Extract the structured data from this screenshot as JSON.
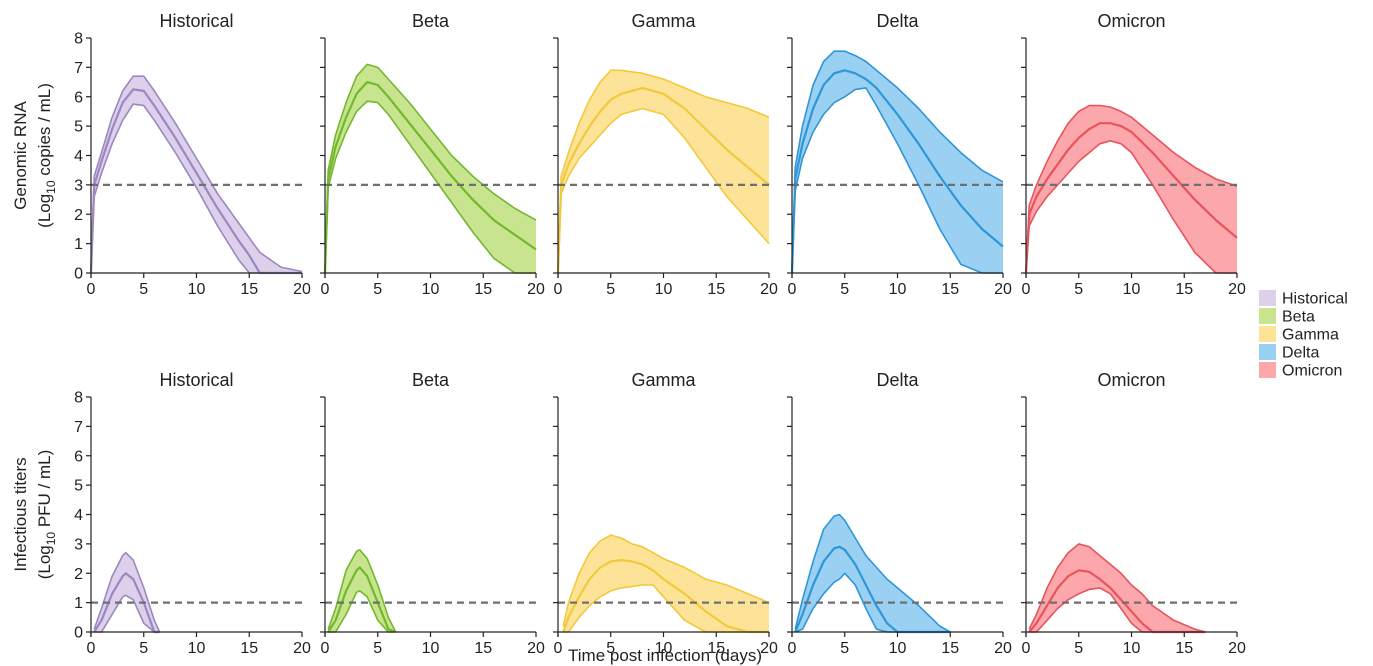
{
  "figure": {
    "xlabel": "Time post infection (days)",
    "rows": [
      {
        "ylabel_main": "Genomic RNA",
        "ylabel_prefix": "(Log",
        "ylabel_sub": "10",
        "ylabel_suffix": " copies / mL)"
      },
      {
        "ylabel_main": "Infectious titers",
        "ylabel_prefix": "(Log",
        "ylabel_sub": "10",
        "ylabel_suffix": " PFU / mL)"
      }
    ],
    "legend": [
      {
        "label": "Historical",
        "color": "#dcd0ea"
      },
      {
        "label": "Beta",
        "color": "#c9e48e"
      },
      {
        "label": "Gamma",
        "color": "#fce398"
      },
      {
        "label": "Delta",
        "color": "#9ad0f2"
      },
      {
        "label": "Omicron",
        "color": "#fba7ab"
      }
    ]
  },
  "chart_data": [
    {
      "type": "area",
      "row": "Genomic RNA",
      "xlabel": "",
      "ylabel": "Genomic RNA (Log10 copies / mL)",
      "xlim": [
        0,
        20
      ],
      "ylim": [
        0,
        8
      ],
      "x_ticks": [
        0,
        5,
        10,
        15,
        20
      ],
      "y_ticks": [
        0,
        1,
        2,
        3,
        4,
        5,
        6,
        7,
        8
      ],
      "threshold": 3,
      "panels": [
        {
          "title": "Historical",
          "line": "#9b87c2",
          "fill": "#dcd0ea",
          "x": [
            0,
            0.3,
            1,
            2,
            3,
            4,
            5,
            6,
            8,
            10,
            12,
            14,
            15,
            16,
            18,
            20
          ],
          "median": [
            0,
            3.0,
            3.8,
            4.9,
            5.8,
            6.25,
            6.2,
            5.7,
            4.6,
            3.4,
            2.2,
            1.1,
            0.6,
            0,
            0,
            0
          ],
          "upper": [
            0,
            3.3,
            4.1,
            5.3,
            6.2,
            6.7,
            6.7,
            6.2,
            5.1,
            3.9,
            2.7,
            1.7,
            1.2,
            0.7,
            0.2,
            0.05
          ],
          "lower": [
            0,
            2.6,
            3.4,
            4.4,
            5.2,
            5.75,
            5.7,
            5.2,
            4.1,
            2.9,
            1.6,
            0.45,
            0,
            0,
            0,
            0
          ]
        },
        {
          "title": "Beta",
          "line": "#72b82e",
          "fill": "#c9e48e",
          "x": [
            0,
            0.3,
            1,
            2,
            3,
            4,
            5,
            6,
            8,
            10,
            12,
            14,
            16,
            18,
            20
          ],
          "median": [
            0,
            3.2,
            4.3,
            5.3,
            6.1,
            6.5,
            6.4,
            6.0,
            5.1,
            4.2,
            3.3,
            2.5,
            1.8,
            1.3,
            0.8
          ],
          "upper": [
            0,
            3.5,
            4.7,
            5.8,
            6.7,
            7.1,
            7.0,
            6.6,
            5.8,
            4.9,
            4.0,
            3.3,
            2.7,
            2.2,
            1.8
          ],
          "lower": [
            0,
            2.9,
            3.9,
            4.8,
            5.5,
            5.85,
            5.8,
            5.4,
            4.4,
            3.4,
            2.4,
            1.4,
            0.5,
            0,
            0
          ]
        },
        {
          "title": "Gamma",
          "line": "#f2c93a",
          "fill": "#fce398",
          "x": [
            0,
            0.3,
            1,
            2,
            3,
            4,
            5,
            6,
            8,
            10,
            12,
            14,
            16,
            18,
            20
          ],
          "median": [
            0,
            3.0,
            3.7,
            4.4,
            5.0,
            5.5,
            5.9,
            6.1,
            6.3,
            6.1,
            5.6,
            4.9,
            4.2,
            3.6,
            3.0
          ],
          "upper": [
            0,
            3.3,
            4.1,
            5.1,
            5.9,
            6.5,
            6.9,
            6.9,
            6.8,
            6.6,
            6.3,
            6.0,
            5.8,
            5.6,
            5.3
          ],
          "lower": [
            0,
            2.7,
            3.3,
            3.9,
            4.3,
            4.7,
            5.1,
            5.4,
            5.6,
            5.4,
            4.6,
            3.6,
            2.6,
            1.8,
            1.0
          ]
        },
        {
          "title": "Delta",
          "line": "#2f96d8",
          "fill": "#9ad0f2",
          "x": [
            0,
            0.3,
            1,
            2,
            3,
            4,
            5,
            6,
            7,
            8,
            10,
            12,
            14,
            16,
            18,
            20
          ],
          "median": [
            0,
            3.2,
            4.4,
            5.6,
            6.4,
            6.8,
            6.9,
            6.8,
            6.6,
            6.3,
            5.4,
            4.4,
            3.3,
            2.3,
            1.5,
            0.9
          ],
          "upper": [
            0,
            3.6,
            5.0,
            6.4,
            7.2,
            7.55,
            7.55,
            7.4,
            7.2,
            6.9,
            6.3,
            5.6,
            4.8,
            4.1,
            3.5,
            3.1
          ],
          "lower": [
            0,
            2.8,
            3.9,
            4.8,
            5.4,
            5.8,
            6.0,
            6.25,
            6.3,
            5.7,
            4.4,
            3.0,
            1.5,
            0.3,
            0,
            0
          ]
        },
        {
          "title": "Omicron",
          "line": "#e8545c",
          "fill": "#fba7ab",
          "x": [
            0,
            0.3,
            1,
            2,
            3,
            4,
            5,
            6,
            7,
            8,
            9,
            10,
            12,
            14,
            16,
            18,
            20
          ],
          "median": [
            0,
            2.0,
            2.6,
            3.2,
            3.7,
            4.2,
            4.6,
            4.9,
            5.1,
            5.1,
            5.0,
            4.8,
            4.1,
            3.3,
            2.5,
            1.8,
            1.2
          ],
          "upper": [
            0,
            2.3,
            3.0,
            3.8,
            4.5,
            5.1,
            5.5,
            5.7,
            5.7,
            5.65,
            5.5,
            5.3,
            4.7,
            4.1,
            3.6,
            3.2,
            2.95
          ],
          "lower": [
            0,
            1.6,
            2.1,
            2.6,
            3.0,
            3.4,
            3.8,
            4.1,
            4.4,
            4.5,
            4.4,
            4.1,
            3.0,
            1.8,
            0.7,
            0,
            0
          ]
        }
      ]
    },
    {
      "type": "area",
      "row": "Infectious titers",
      "xlabel": "Time post infection (days)",
      "ylabel": "Infectious titers (Log10 PFU / mL)",
      "xlim": [
        0,
        20
      ],
      "ylim": [
        0,
        8
      ],
      "x_ticks": [
        0,
        5,
        10,
        15,
        20
      ],
      "y_ticks": [
        0,
        1,
        2,
        3,
        4,
        5,
        6,
        7,
        8
      ],
      "threshold": 1,
      "panels": [
        {
          "title": "Historical",
          "line": "#9b87c2",
          "fill": "#dcd0ea",
          "x": [
            0.3,
            1,
            2,
            3,
            3.3,
            4,
            5,
            6,
            6.5
          ],
          "median": [
            0,
            0.4,
            1.3,
            1.9,
            2.0,
            1.8,
            1.0,
            0,
            0
          ],
          "upper": [
            0.1,
            0.8,
            1.9,
            2.6,
            2.7,
            2.45,
            1.5,
            0.4,
            0
          ],
          "lower": [
            0,
            0,
            0.6,
            1.2,
            1.25,
            1.1,
            0.3,
            0,
            0
          ]
        },
        {
          "title": "Beta",
          "line": "#72b82e",
          "fill": "#c9e48e",
          "x": [
            0.3,
            1,
            2,
            3,
            3.3,
            4,
            5,
            6,
            6.7
          ],
          "median": [
            0,
            0.4,
            1.4,
            2.1,
            2.2,
            1.9,
            1.0,
            0.1,
            0
          ],
          "upper": [
            0.1,
            0.8,
            2.1,
            2.75,
            2.8,
            2.5,
            1.6,
            0.5,
            0
          ],
          "lower": [
            0,
            0,
            0.6,
            1.35,
            1.4,
            1.2,
            0.4,
            0,
            0
          ]
        },
        {
          "title": "Gamma",
          "line": "#f2c93a",
          "fill": "#fce398",
          "x": [
            0.5,
            1,
            2,
            3,
            4,
            5,
            6,
            7,
            8,
            9,
            10,
            12,
            14,
            16,
            18,
            20
          ],
          "median": [
            0,
            0.5,
            1.2,
            1.8,
            2.2,
            2.4,
            2.45,
            2.4,
            2.3,
            2.1,
            1.8,
            1.3,
            0.7,
            0.2,
            0,
            0
          ],
          "upper": [
            0.2,
            1.0,
            2.0,
            2.7,
            3.1,
            3.3,
            3.2,
            3.0,
            2.9,
            2.7,
            2.5,
            2.2,
            1.8,
            1.6,
            1.3,
            1.0
          ],
          "lower": [
            0,
            0,
            0.5,
            0.9,
            1.2,
            1.4,
            1.5,
            1.55,
            1.6,
            1.6,
            1.2,
            0.4,
            0,
            0,
            0,
            0
          ]
        },
        {
          "title": "Delta",
          "line": "#2f96d8",
          "fill": "#9ad0f2",
          "x": [
            0.3,
            1,
            2,
            3,
            4,
            4.5,
            5,
            6,
            7,
            8,
            9,
            10,
            12,
            14,
            15
          ],
          "median": [
            0,
            0.6,
            1.6,
            2.4,
            2.85,
            2.9,
            2.8,
            2.3,
            1.6,
            0.9,
            0.3,
            0,
            0,
            0,
            0
          ],
          "upper": [
            0.1,
            1.1,
            2.4,
            3.5,
            3.95,
            4.0,
            3.8,
            3.2,
            2.6,
            2.2,
            1.8,
            1.5,
            0.9,
            0.2,
            0
          ],
          "lower": [
            0,
            0.1,
            0.8,
            1.3,
            1.7,
            1.8,
            2.0,
            1.6,
            0.8,
            0.1,
            0,
            0,
            0,
            0,
            0
          ]
        },
        {
          "title": "Omicron",
          "line": "#e8545c",
          "fill": "#fba7ab",
          "x": [
            0.3,
            1,
            2,
            3,
            4,
            5,
            6,
            7,
            8,
            9,
            10,
            11,
            12,
            14,
            16,
            17
          ],
          "median": [
            0,
            0.3,
            0.9,
            1.5,
            1.9,
            2.1,
            2.05,
            1.8,
            1.5,
            1.1,
            0.7,
            0.3,
            0,
            0,
            0,
            0
          ],
          "upper": [
            0.1,
            0.6,
            1.5,
            2.2,
            2.7,
            3.0,
            2.9,
            2.6,
            2.3,
            2.0,
            1.6,
            1.3,
            0.9,
            0.4,
            0.1,
            0
          ],
          "lower": [
            0,
            0,
            0.4,
            0.8,
            1.1,
            1.3,
            1.45,
            1.5,
            1.3,
            0.8,
            0.3,
            0,
            0,
            0,
            0,
            0
          ]
        }
      ]
    }
  ]
}
